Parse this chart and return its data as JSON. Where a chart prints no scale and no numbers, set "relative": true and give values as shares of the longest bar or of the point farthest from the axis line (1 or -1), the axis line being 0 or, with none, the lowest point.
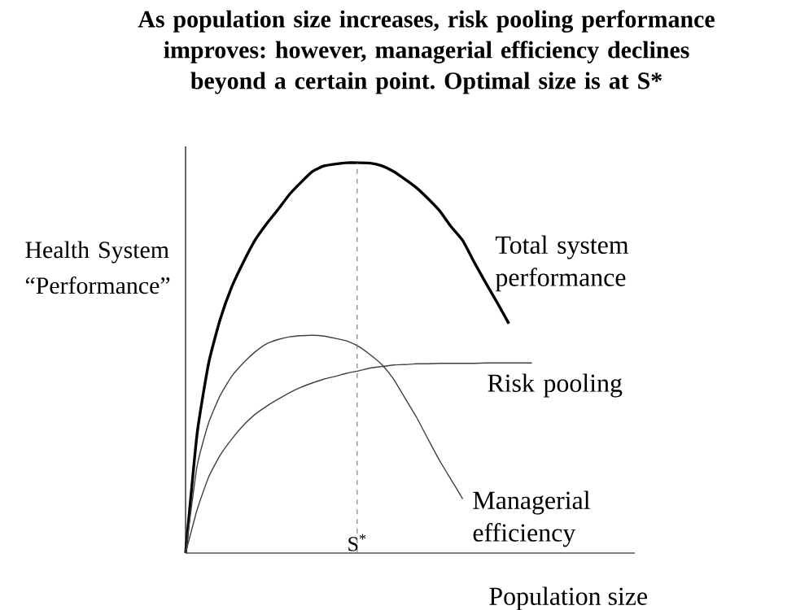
{
  "chart_data": {
    "type": "line",
    "title": "As population size increases, risk pooling performance improves: however, managerial efficiency declines beyond a certain point. Optimal size is at S*",
    "xlabel": "Population size",
    "ylabel": "Health System “Performance”",
    "relative": true,
    "marker": "none",
    "categories": [
      null,
      null,
      null,
      null,
      null,
      null,
      null,
      null,
      null,
      null,
      null,
      null,
      null,
      null,
      null,
      null,
      null,
      null,
      null,
      null,
      null,
      null,
      null,
      null,
      null,
      null,
      null,
      null,
      null,
      null,
      null
    ],
    "series": [
      {
        "name": "Total system performance",
        "color": "#000000",
        "values": [
          0,
          0.306,
          0.487,
          0.599,
          0.682,
          0.745,
          0.801,
          0.843,
          0.88,
          0.919,
          0.95,
          0.978,
          0.992,
          0.997,
          1,
          1,
          0.999,
          0.992,
          0.978,
          0.958,
          0.936,
          0.908,
          0.877,
          0.836,
          0.801,
          0.745,
          0.692,
          0.641,
          0.588,
          null,
          null
        ]
      },
      {
        "name": "Risk pooling",
        "color": "#404040",
        "values": [
          0,
          0.111,
          0.195,
          0.251,
          0.292,
          0.327,
          0.355,
          0.376,
          0.394,
          0.411,
          0.425,
          0.436,
          0.446,
          0.453,
          0.461,
          0.467,
          0.474,
          0.478,
          0.482,
          0.483,
          0.485,
          0.485,
          0.486,
          0.486,
          0.486,
          0.486,
          0.487,
          0.487,
          0.487,
          0.487,
          0.487
        ]
      },
      {
        "name": "Managerial efficiency",
        "color": "#404040",
        "values": [
          0,
          0.223,
          0.334,
          0.404,
          0.453,
          0.487,
          0.515,
          0.536,
          0.547,
          0.554,
          0.557,
          0.558,
          0.556,
          0.55,
          0.543,
          0.529,
          0.508,
          0.483,
          0.446,
          0.397,
          0.348,
          0.292,
          0.237,
          0.188,
          0.139,
          null,
          null,
          null,
          null,
          null,
          null
        ]
      }
    ],
    "annotations": [
      "S$^{*}$"
    ]
  }
}
